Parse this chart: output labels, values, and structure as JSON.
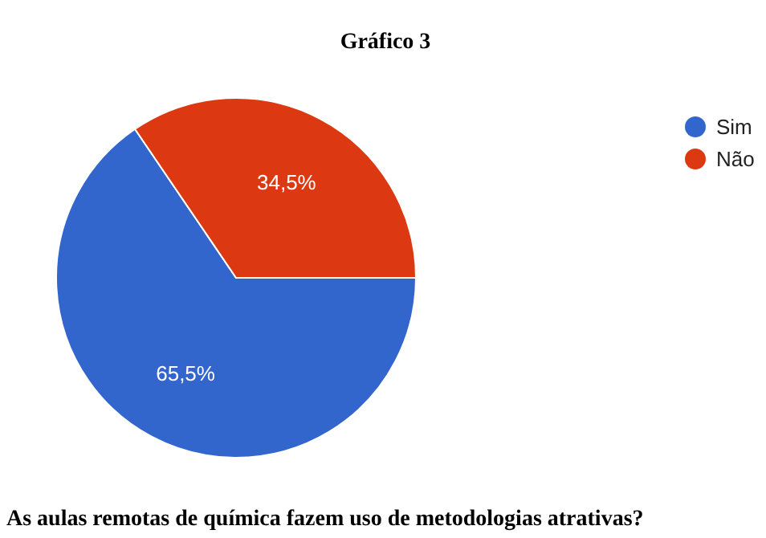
{
  "chart_data": {
    "type": "pie",
    "title": "Gráfico 3",
    "categories": [
      "Sim",
      "Não"
    ],
    "values": [
      65.5,
      34.5
    ],
    "colors": [
      "#3366cc",
      "#dc3912"
    ],
    "value_labels": [
      "65,5%",
      "34,5%"
    ],
    "legend": "right",
    "annotations": [
      "As aulas remotas de química fazem uso de metodologias atrativas?"
    ]
  }
}
